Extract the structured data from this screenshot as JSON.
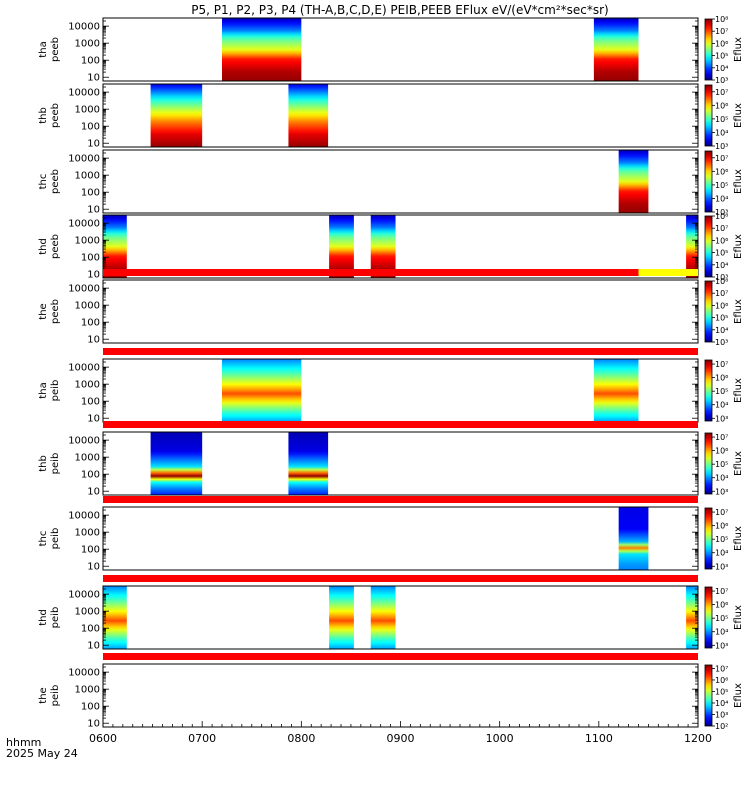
{
  "chart_data": {
    "type": "heatmap",
    "title": "P5, P1, P2, P3, P4 (TH-A,B,C,D,E) PEIB,PEEB EFlux eV/(eV*cm²*sec*sr)",
    "time_label": "hhmm",
    "date_label": "2025 May 24",
    "x_ticks": [
      "0600",
      "0700",
      "0800",
      "0900",
      "1000",
      "1100",
      "1200"
    ],
    "x_range": [
      600,
      1200
    ],
    "y_scale": "log",
    "y_ticks": [
      "10",
      "100",
      "1000",
      "10000"
    ],
    "colorbar_label": "Eflux",
    "panels": [
      {
        "l1": "tha",
        "l2": "peeb",
        "cb_ticks": [
          "10³",
          "10⁴",
          "10⁵",
          "10⁶",
          "10⁷",
          "10⁸"
        ],
        "cb_log": [
          3,
          8
        ],
        "blocks": [
          {
            "t0": 720,
            "t1": 800,
            "profile": "peeb_hot"
          },
          {
            "t0": 1095,
            "t1": 1140,
            "profile": "peeb_hot"
          }
        ],
        "bar": null
      },
      {
        "l1": "thb",
        "l2": "peeb",
        "cb_ticks": [
          "10³",
          "10⁴",
          "10⁵",
          "10⁶",
          "10⁷"
        ],
        "cb_log": [
          3,
          7.5
        ],
        "blocks": [
          {
            "t0": 648,
            "t1": 700,
            "profile": "peeb_dense"
          },
          {
            "t0": 787,
            "t1": 827,
            "profile": "peeb_dense"
          }
        ],
        "bar": null
      },
      {
        "l1": "thc",
        "l2": "peeb",
        "cb_ticks": [
          "10³",
          "10⁴",
          "10⁵",
          "10⁶",
          "10⁷"
        ],
        "cb_log": [
          3,
          7.5
        ],
        "blocks": [
          {
            "t0": 1120,
            "t1": 1150,
            "profile": "peeb_hot"
          }
        ],
        "bar": null
      },
      {
        "l1": "thd",
        "l2": "peeb",
        "cb_ticks": [
          "10³",
          "10⁴",
          "10⁵",
          "10⁶",
          "10⁷",
          "10⁸"
        ],
        "cb_log": [
          3,
          8
        ],
        "blocks": [
          {
            "t0": 600,
            "t1": 624,
            "profile": "peeb_hot"
          },
          {
            "t0": 828,
            "t1": 853,
            "profile": "peeb_hot"
          },
          {
            "t0": 870,
            "t1": 895,
            "profile": "peeb_hot"
          },
          {
            "t0": 1188,
            "t1": 1200,
            "profile": "peeb_hot"
          }
        ],
        "bar": null
      },
      {
        "l1": "the",
        "l2": "peeb",
        "cb_ticks": [
          "10³",
          "10⁴",
          "10⁵",
          "10⁶",
          "10⁷",
          "10⁸"
        ],
        "cb_log": [
          3,
          8
        ],
        "blocks": [],
        "bar": {
          "red_to": 1140,
          "yellow_to": 1200
        }
      },
      {
        "l1": "tha",
        "l2": "peib",
        "cb_ticks": [
          "10³",
          "10⁴",
          "10⁵",
          "10⁶",
          "10⁷"
        ],
        "cb_log": [
          2.8,
          7.3
        ],
        "blocks": [
          {
            "t0": 720,
            "t1": 800,
            "profile": "peib_wide"
          },
          {
            "t0": 1095,
            "t1": 1140,
            "profile": "peib_wide"
          }
        ],
        "bar": {
          "red_to": 1200,
          "yellow_to": 1200
        }
      },
      {
        "l1": "thb",
        "l2": "peib",
        "cb_ticks": [
          "10³",
          "10⁴",
          "10⁵",
          "10⁶",
          "10⁷"
        ],
        "cb_log": [
          2.8,
          7.3
        ],
        "blocks": [
          {
            "t0": 648,
            "t1": 700,
            "profile": "peib_band"
          },
          {
            "t0": 787,
            "t1": 827,
            "profile": "peib_band"
          }
        ],
        "bar": {
          "red_to": 1200,
          "yellow_to": 1200
        }
      },
      {
        "l1": "thc",
        "l2": "peib",
        "cb_ticks": [
          "10³",
          "10⁴",
          "10⁵",
          "10⁶",
          "10⁷"
        ],
        "cb_log": [
          2.8,
          7.3
        ],
        "blocks": [
          {
            "t0": 1120,
            "t1": 1150,
            "profile": "peib_band_cold"
          }
        ],
        "bar": {
          "red_to": 1200,
          "yellow_to": 1200
        }
      },
      {
        "l1": "thd",
        "l2": "peib",
        "cb_ticks": [
          "10³",
          "10⁴",
          "10⁵",
          "10⁶",
          "10⁷"
        ],
        "cb_log": [
          2.8,
          7.3
        ],
        "blocks": [
          {
            "t0": 600,
            "t1": 624,
            "profile": "peib_wide"
          },
          {
            "t0": 828,
            "t1": 853,
            "profile": "peib_wide"
          },
          {
            "t0": 870,
            "t1": 895,
            "profile": "peib_wide"
          },
          {
            "t0": 1188,
            "t1": 1200,
            "profile": "peib_wide"
          }
        ],
        "bar": {
          "red_to": 1200,
          "yellow_to": 1200
        }
      },
      {
        "l1": "the",
        "l2": "peib",
        "cb_ticks": [
          "10²",
          "10³",
          "10⁴",
          "10⁵",
          "10⁶",
          "10⁷"
        ],
        "cb_log": [
          2,
          7.3
        ],
        "blocks": [],
        "bar": {
          "red_to": 1200,
          "yellow_to": 1200
        }
      }
    ]
  }
}
